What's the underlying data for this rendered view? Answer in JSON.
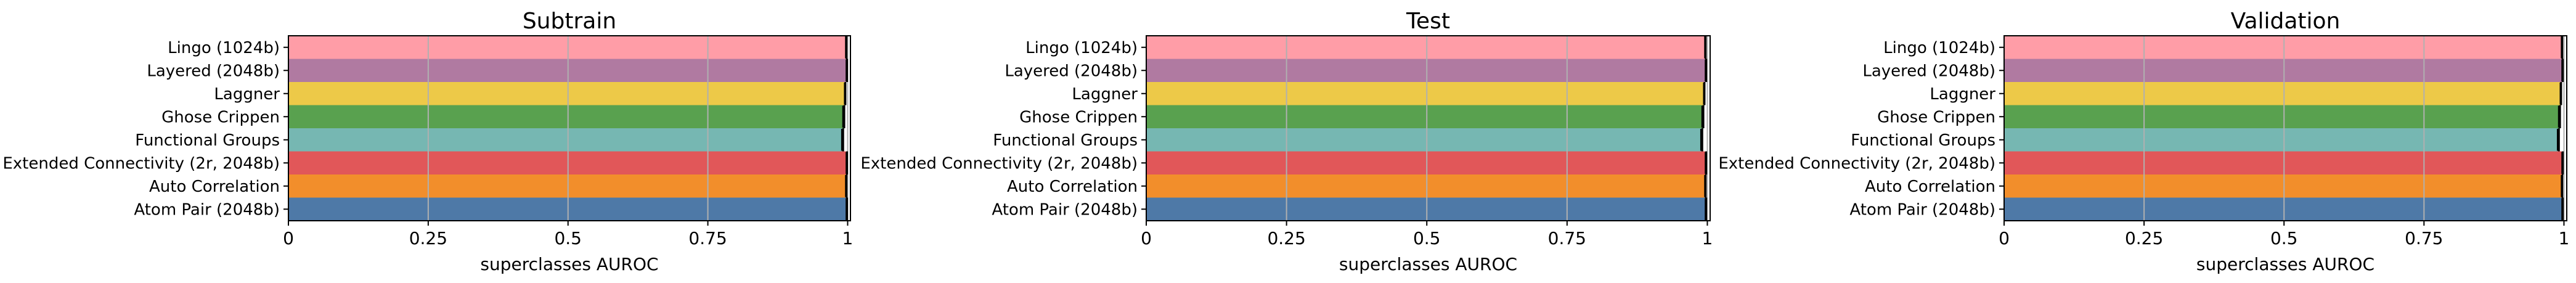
{
  "categories": [
    "Lingo (1024b)",
    "Layered (2048b)",
    "Laggner",
    "Ghose Crippen",
    "Functional Groups",
    "Extended Connectivity (2r, 2048b)",
    "Auto Correlation",
    "Atom Pair (2048b)"
  ],
  "colors": [
    "#FF9DA7",
    "#B07AA1",
    "#EDC948",
    "#59A14F",
    "#76B7B2",
    "#E15759",
    "#F28E2B",
    "#4E79A7"
  ],
  "chart_data": [
    {
      "type": "bar",
      "orientation": "horizontal",
      "title": "Subtrain",
      "xlabel": "superclasses AUROC",
      "xlim": [
        0,
        1.005
      ],
      "xticks": [
        "0",
        "0.25",
        "0.5",
        "0.75",
        "1"
      ],
      "grid": "x",
      "categories": [
        "Lingo (1024b)",
        "Layered (2048b)",
        "Laggner",
        "Ghose Crippen",
        "Functional Groups",
        "Extended Connectivity (2r, 2048b)",
        "Auto Correlation",
        "Atom Pair (2048b)"
      ],
      "values": [
        0.998,
        0.999,
        0.996,
        0.994,
        0.992,
        0.999,
        0.998,
        0.999
      ],
      "error": [
        0.001,
        0.001,
        0.001,
        0.002,
        0.002,
        0.001,
        0.001,
        0.001
      ]
    },
    {
      "type": "bar",
      "orientation": "horizontal",
      "title": "Test",
      "xlabel": "superclasses AUROC",
      "xlim": [
        0,
        1.005
      ],
      "xticks": [
        "0",
        "0.25",
        "0.5",
        "0.75",
        "1"
      ],
      "grid": "x",
      "categories": [
        "Lingo (1024b)",
        "Layered (2048b)",
        "Laggner",
        "Ghose Crippen",
        "Functional Groups",
        "Extended Connectivity (2r, 2048b)",
        "Auto Correlation",
        "Atom Pair (2048b)"
      ],
      "values": [
        0.997,
        0.998,
        0.995,
        0.993,
        0.991,
        0.998,
        0.997,
        0.998
      ],
      "error": [
        0.001,
        0.001,
        0.001,
        0.002,
        0.002,
        0.001,
        0.001,
        0.001
      ]
    },
    {
      "type": "bar",
      "orientation": "horizontal",
      "title": "Validation",
      "xlabel": "superclasses AUROC",
      "xlim": [
        0,
        1.005
      ],
      "xticks": [
        "0",
        "0.25",
        "0.5",
        "0.75",
        "1"
      ],
      "grid": "x",
      "categories": [
        "Lingo (1024b)",
        "Layered (2048b)",
        "Laggner",
        "Ghose Crippen",
        "Functional Groups",
        "Extended Connectivity (2r, 2048b)",
        "Auto Correlation",
        "Atom Pair (2048b)"
      ],
      "values": [
        0.997,
        0.998,
        0.995,
        0.993,
        0.991,
        0.998,
        0.997,
        0.998
      ],
      "error": [
        0.001,
        0.001,
        0.001,
        0.002,
        0.002,
        0.001,
        0.001,
        0.001
      ]
    }
  ]
}
